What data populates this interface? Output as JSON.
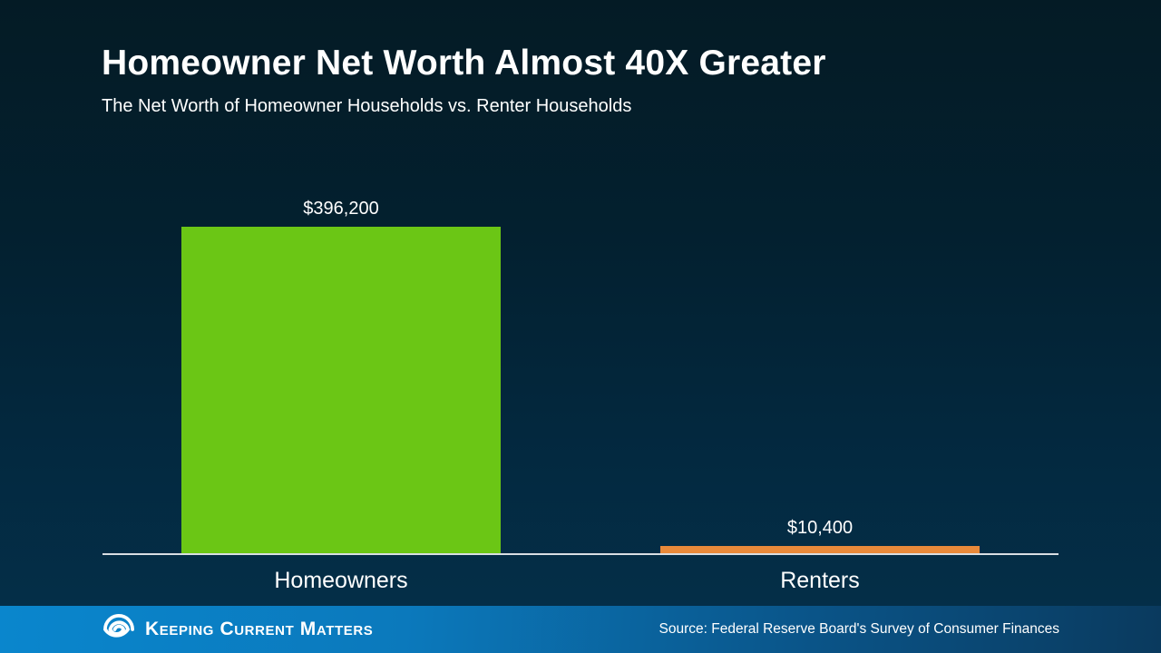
{
  "header": {
    "title": "Homeowner Net Worth Almost 40X Greater",
    "subtitle": "The Net Worth of Homeowner Households vs. Renter Households"
  },
  "chart_data": {
    "type": "bar",
    "title": "Homeowner Net Worth Almost 40X Greater",
    "subtitle": "The Net Worth of Homeowner Households vs. Renter Households",
    "categories": [
      "Homeowners",
      "Renters"
    ],
    "values": [
      396200,
      10400
    ],
    "value_labels": [
      "$396,200",
      "$10,400"
    ],
    "bar_colors": [
      "#6bc615",
      "#e8893a"
    ],
    "xlabel": "",
    "ylabel": "",
    "ylim": [
      0,
      396200
    ],
    "grid": false,
    "legend": "none",
    "axis_line_color": "#d9dee3",
    "background_top": "#041b25",
    "background_bottom": "#04304a"
  },
  "footer": {
    "brand_name": "Keeping Current Matters",
    "logo_icon": "kcm-swirl-icon",
    "source": "Source: Federal Reserve Board's Survey of Consumer Finances",
    "gradient_left": "#0a86cd",
    "gradient_right": "#0a3a5e"
  }
}
